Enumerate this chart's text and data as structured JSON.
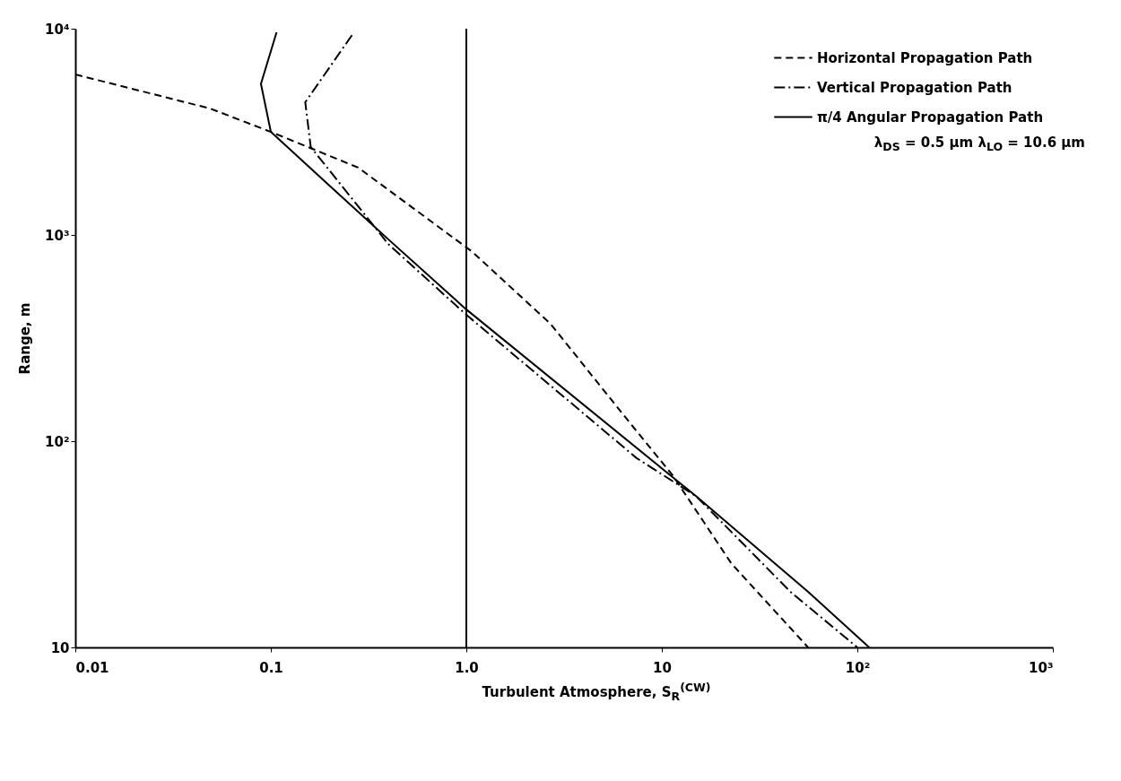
{
  "chart_data": {
    "type": "line",
    "xlabel": "Turbulent Atmosphere, S$_{R}$$^{(CW)}$",
    "ylabel": "Range, m",
    "log": "xy",
    "xlim": [
      0.01,
      1000
    ],
    "ylim": [
      10,
      10000
    ],
    "xticks": [
      0.01,
      0.1,
      {
        "value": 1,
        "label": "1.0"
      },
      10,
      {
        "value": 100,
        "label": "10²"
      },
      {
        "value": 1000,
        "label": "10³"
      }
    ],
    "yticks": [
      10,
      {
        "value": 100,
        "label": "10²"
      },
      {
        "value": 1000,
        "label": "10³"
      },
      {
        "value": 10000,
        "label": "10⁴"
      }
    ],
    "grid": false,
    "legend": "top right",
    "marker": "none",
    "series": [
      {
        "name": "Horizontal Propagation Path",
        "color": "#000000",
        "line_style": "dashed",
        "x": [
          0.01,
          0.049,
          0.1,
          0.28,
          1.07,
          2.7,
          6.8,
          11.4,
          22.7,
          56
        ],
        "values": [
          6000,
          4100,
          3160,
          2120,
          830,
          370,
          124,
          68,
          25.5,
          10
        ]
      },
      {
        "name": "Vertical Propagation Path",
        "color": "#000000",
        "line_style": "dashdot",
        "x": [
          0.26,
          0.15,
          0.16,
          0.4,
          1.0,
          7.4,
          15,
          45.5,
          100
        ],
        "values": [
          9300,
          4400,
          2670,
          900,
          410,
          83,
          54,
          18.6,
          10
        ]
      },
      {
        "name": "π/4 Angular Propagation Path",
        "color": "#000000",
        "line_style": "solid",
        "x": [
          0.107,
          0.089,
          0.1,
          0.2,
          0.4,
          1.0,
          15,
          56,
          115
        ],
        "values": [
          9600,
          5400,
          3160,
          1730,
          950,
          435,
          54,
          18.6,
          10
        ]
      }
    ],
    "ref_lines": [
      {
        "axis": "x",
        "value": 1,
        "color": "#000000"
      }
    ],
    "annotations": [
      "λ$_{DS}$ = 0.5 μm  λ$_{LO}$ = 10.6 μm"
    ]
  }
}
